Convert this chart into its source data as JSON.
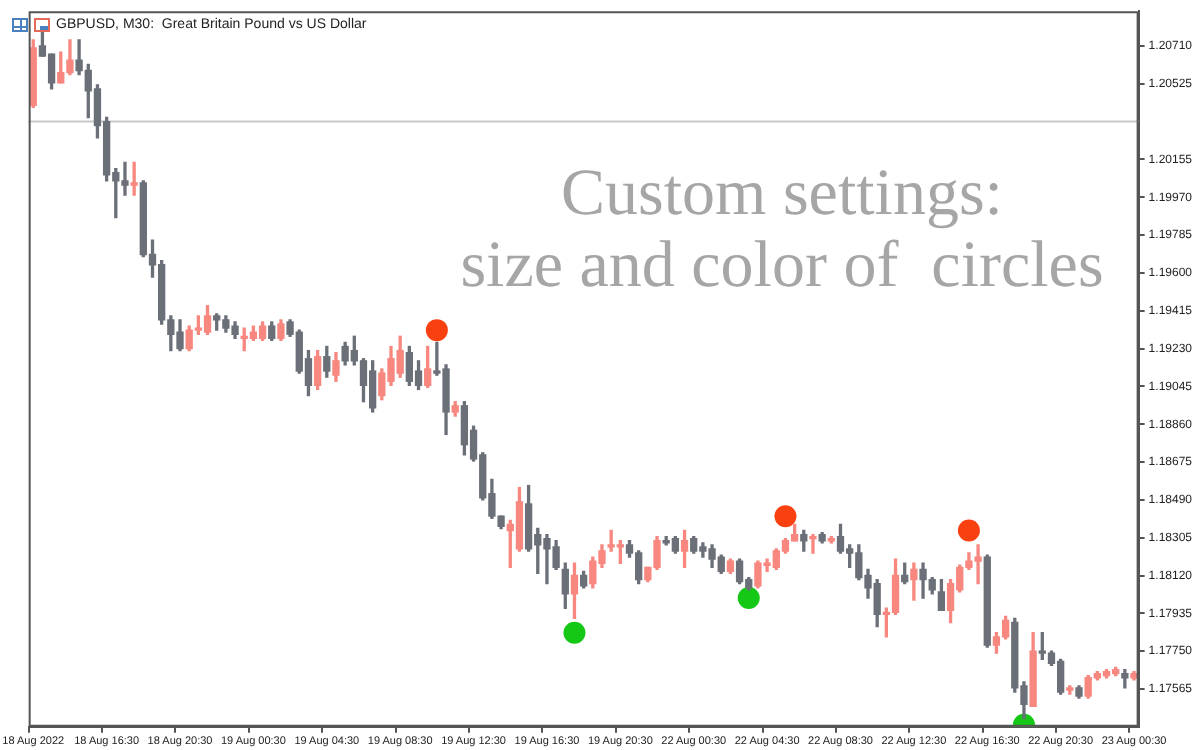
{
  "chart_data": {
    "type": "candlestick",
    "title": "GBPUSD, M30:  Great Britain Pound vs US Dollar",
    "annotations": [
      "Custom settings:",
      "size and color of  circles"
    ],
    "categories": [
      "18 Aug 2022",
      null,
      null,
      null,
      null,
      null,
      null,
      null,
      "18 Aug 16:30",
      null,
      null,
      null,
      null,
      null,
      null,
      null,
      "18 Aug 20:30",
      null,
      null,
      null,
      null,
      null,
      null,
      null,
      "19 Aug 00:30",
      null,
      null,
      null,
      null,
      null,
      null,
      null,
      "19 Aug 04:30",
      null,
      null,
      null,
      null,
      null,
      null,
      null,
      "19 Aug 08:30",
      null,
      null,
      null,
      null,
      null,
      null,
      null,
      "19 Aug 12:30",
      null,
      null,
      null,
      null,
      null,
      null,
      null,
      "19 Aug 16:30",
      null,
      null,
      null,
      null,
      null,
      null,
      null,
      "19 Aug 20:30",
      null,
      null,
      null,
      null,
      null,
      null,
      null,
      "22 Aug 00:30",
      null,
      null,
      null,
      null,
      null,
      null,
      null,
      "22 Aug 04:30",
      null,
      null,
      null,
      null,
      null,
      null,
      null,
      "22 Aug 08:30",
      null,
      null,
      null,
      null,
      null,
      null,
      null,
      "22 Aug 12:30",
      null,
      null,
      null,
      null,
      null,
      null,
      null,
      "22 Aug 16:30",
      null,
      null,
      null,
      null,
      null,
      null,
      null,
      "22 Aug 20:30",
      null,
      null,
      null,
      null,
      null,
      null,
      null,
      "23 Aug 00:30"
    ],
    "ohlc": [
      [
        1.2042,
        1.2074,
        1.2041,
        1.207
      ],
      [
        1.2071,
        1.2079,
        1.2066,
        1.2066
      ],
      [
        1.2067,
        1.2067,
        1.205,
        1.2053
      ],
      [
        1.2053,
        1.2068,
        1.2053,
        1.2058
      ],
      [
        1.2058,
        1.2074,
        1.2057,
        1.2064
      ],
      [
        1.2064,
        1.2074,
        1.2057,
        1.2059
      ],
      [
        1.2059,
        1.2062,
        1.2036,
        1.2049
      ],
      [
        1.205,
        1.2052,
        1.2026,
        1.2032
      ],
      [
        1.2034,
        1.2036,
        1.2005,
        1.2008
      ],
      [
        1.2009,
        1.2011,
        1.1987,
        1.2005
      ],
      [
        1.2005,
        1.2014,
        1.1998,
        1.2003
      ],
      [
        1.2003,
        1.2014,
        1.1998,
        1.2004
      ],
      [
        1.2004,
        1.2005,
        1.1968,
        1.1969
      ],
      [
        1.1969,
        1.1976,
        1.1958,
        1.1964
      ],
      [
        1.1964,
        1.1966,
        1.1935,
        1.1937
      ],
      [
        1.1937,
        1.1939,
        1.1922,
        1.193
      ],
      [
        1.1931,
        1.1937,
        1.1922,
        1.1923
      ],
      [
        1.1923,
        1.1934,
        1.1922,
        1.1932
      ],
      [
        1.1932,
        1.1939,
        1.193,
        1.1933
      ],
      [
        1.1931,
        1.1944,
        1.193,
        1.1939
      ],
      [
        1.1939,
        1.194,
        1.1932,
        1.1937
      ],
      [
        1.1937,
        1.1939,
        1.1931,
        1.1933
      ],
      [
        1.1934,
        1.1936,
        1.1928,
        1.193
      ],
      [
        1.1928,
        1.1933,
        1.1922,
        1.1929
      ],
      [
        1.1928,
        1.1934,
        1.1927,
        1.1931
      ],
      [
        1.1928,
        1.1936,
        1.1927,
        1.1934
      ],
      [
        1.1934,
        1.1936,
        1.1927,
        1.1928
      ],
      [
        1.1928,
        1.1937,
        1.1927,
        1.1935
      ],
      [
        1.1936,
        1.1937,
        1.1929,
        1.193
      ],
      [
        1.1931,
        1.1932,
        1.1911,
        1.1912
      ],
      [
        1.1918,
        1.1922,
        1.19,
        1.1905
      ],
      [
        1.1905,
        1.1922,
        1.1903,
        1.1919
      ],
      [
        1.1919,
        1.1924,
        1.1909,
        1.1912
      ],
      [
        1.191,
        1.1921,
        1.1907,
        1.1917
      ],
      [
        1.1924,
        1.1926,
        1.1915,
        1.1917
      ],
      [
        1.1922,
        1.1929,
        1.1915,
        1.1917
      ],
      [
        1.1917,
        1.1918,
        1.1897,
        1.1905
      ],
      [
        1.1912,
        1.1917,
        1.1892,
        1.1894
      ],
      [
        1.19,
        1.1913,
        1.1898,
        1.1911
      ],
      [
        1.1907,
        1.1924,
        1.1905,
        1.1918
      ],
      [
        1.1911,
        1.1929,
        1.1909,
        1.1922
      ],
      [
        1.1921,
        1.1924,
        1.1905,
        1.1907
      ],
      [
        1.1912,
        1.1917,
        1.1903,
        1.1905
      ],
      [
        1.1905,
        1.1924,
        1.1904,
        1.1913
      ],
      [
        1.1912,
        1.1926,
        1.191,
        1.1911
      ],
      [
        1.1913,
        1.1915,
        1.1881,
        1.1892
      ],
      [
        1.1892,
        1.1897,
        1.189,
        1.1895
      ],
      [
        1.1895,
        1.1897,
        1.1871,
        1.1876
      ],
      [
        1.1883,
        1.1885,
        1.1868,
        1.1869
      ],
      [
        1.1871,
        1.1872,
        1.1849,
        1.185
      ],
      [
        1.1852,
        1.1859,
        1.184,
        1.1841
      ],
      [
        1.1841,
        1.1841,
        1.1835,
        1.1836
      ],
      [
        1.1834,
        1.1839,
        1.1816,
        1.1837
      ],
      [
        1.1825,
        1.1855,
        1.1824,
        1.1848
      ],
      [
        1.1847,
        1.1856,
        1.1824,
        1.1825
      ],
      [
        1.1832,
        1.1835,
        1.1813,
        1.1827
      ],
      [
        1.183,
        1.1832,
        1.1808,
        1.1825
      ],
      [
        1.1826,
        1.1829,
        1.1815,
        1.1816
      ],
      [
        1.1815,
        1.1818,
        1.1796,
        1.1803
      ],
      [
        1.1803,
        1.1818,
        1.1791,
        1.1812
      ],
      [
        1.1812,
        1.1814,
        1.1806,
        1.1807
      ],
      [
        1.1808,
        1.1821,
        1.1806,
        1.1819
      ],
      [
        1.1818,
        1.1827,
        1.1816,
        1.1824
      ],
      [
        1.1826,
        1.1834,
        1.1824,
        1.1827
      ],
      [
        1.1826,
        1.1829,
        1.1818,
        1.1827
      ],
      [
        1.1827,
        1.1829,
        1.1821,
        1.1823
      ],
      [
        1.1823,
        1.1824,
        1.1808,
        1.181
      ],
      [
        1.181,
        1.1816,
        1.1809,
        1.1816
      ],
      [
        1.1816,
        1.1831,
        1.1815,
        1.1829
      ],
      [
        1.1829,
        1.1831,
        1.1827,
        1.1828
      ],
      [
        1.183,
        1.1831,
        1.1823,
        1.1824
      ],
      [
        1.1824,
        1.1834,
        1.1816,
        1.1829
      ],
      [
        1.183,
        1.1831,
        1.1823,
        1.1824
      ],
      [
        1.1826,
        1.1828,
        1.1821,
        1.1824
      ],
      [
        1.1825,
        1.1827,
        1.1816,
        1.182
      ],
      [
        1.1821,
        1.1822,
        1.1813,
        1.1814
      ],
      [
        1.1814,
        1.182,
        1.1813,
        1.1819
      ],
      [
        1.1819,
        1.182,
        1.1808,
        1.1809
      ],
      [
        1.181,
        1.1811,
        1.1805,
        1.1806
      ],
      [
        1.1807,
        1.1819,
        1.1806,
        1.1818
      ],
      [
        1.1817,
        1.182,
        1.1814,
        1.1818
      ],
      [
        1.1816,
        1.1825,
        1.1815,
        1.1824
      ],
      [
        1.1824,
        1.183,
        1.1823,
        1.1829
      ],
      [
        1.1829,
        1.1837,
        1.1829,
        1.1832
      ],
      [
        1.1832,
        1.1834,
        1.1824,
        1.1829
      ],
      [
        1.183,
        1.1832,
        1.1823,
        1.1831
      ],
      [
        1.1832,
        1.1833,
        1.1828,
        1.1829
      ],
      [
        1.1829,
        1.1831,
        1.1828,
        1.183
      ],
      [
        1.1831,
        1.1837,
        1.1823,
        1.1824
      ],
      [
        1.1825,
        1.1827,
        1.1816,
        1.1823
      ],
      [
        1.1823,
        1.1827,
        1.181,
        1.1811
      ],
      [
        1.1812,
        1.1815,
        1.1801,
        1.1806
      ],
      [
        1.1808,
        1.181,
        1.1787,
        1.1793
      ],
      [
        1.1793,
        1.1796,
        1.1782,
        1.1794
      ],
      [
        1.1794,
        1.182,
        1.1793,
        1.1812
      ],
      [
        1.1812,
        1.1818,
        1.1808,
        1.1809
      ],
      [
        1.181,
        1.1818,
        1.18,
        1.1815
      ],
      [
        1.1815,
        1.1818,
        1.1801,
        1.181
      ],
      [
        1.181,
        1.1811,
        1.1803,
        1.1805
      ],
      [
        1.1804,
        1.181,
        1.1795,
        1.1795
      ],
      [
        1.1795,
        1.181,
        1.1789,
        1.1808
      ],
      [
        1.1805,
        1.1817,
        1.1804,
        1.1816
      ],
      [
        1.1816,
        1.1823,
        1.1815,
        1.1819
      ],
      [
        1.1819,
        1.1827,
        1.1808,
        1.1821
      ],
      [
        1.1821,
        1.1822,
        1.1777,
        1.1778
      ],
      [
        1.1778,
        1.1784,
        1.1774,
        1.1782
      ],
      [
        1.1782,
        1.1792,
        1.1781,
        1.179
      ],
      [
        1.1789,
        1.1791,
        1.1755,
        1.1757
      ],
      [
        1.1758,
        1.176,
        1.1742,
        1.1749
      ],
      [
        1.1748,
        1.1784,
        1.1748,
        1.1775
      ],
      [
        1.1775,
        1.1784,
        1.1771,
        1.1774
      ],
      [
        1.1774,
        1.1775,
        1.1768,
        1.1769
      ],
      [
        1.177,
        1.1771,
        1.1754,
        1.1755
      ],
      [
        1.1756,
        1.1758,
        1.1754,
        1.1757
      ],
      [
        1.1757,
        1.1758,
        1.1752,
        1.1753
      ],
      [
        1.1753,
        1.1763,
        1.1752,
        1.1762
      ],
      [
        1.1762,
        1.1765,
        1.1761,
        1.1764
      ],
      [
        1.1763,
        1.1766,
        1.1762,
        1.1765
      ],
      [
        1.1764,
        1.1767,
        1.1763,
        1.1766
      ],
      [
        1.1764,
        1.1766,
        1.1757,
        1.1762
      ],
      [
        1.1762,
        1.1765,
        1.1761,
        1.1764
      ]
    ],
    "colors": [
      "#f7877f",
      "#6b7078",
      "#6b7078",
      "#f7877f",
      "#f7877f",
      "#6b7078",
      "#6b7078",
      "#6b7078",
      "#6b7078",
      "#6b7078",
      "#6b7078",
      "#f7877f",
      "#6b7078",
      "#6b7078",
      "#6b7078",
      "#6b7078",
      "#6b7078",
      "#f7877f",
      "#f7877f",
      "#f7877f",
      "#6b7078",
      "#6b7078",
      "#6b7078",
      "#f7877f",
      "#f7877f",
      "#f7877f",
      "#6b7078",
      "#f7877f",
      "#6b7078",
      "#6b7078",
      "#6b7078",
      "#f7877f",
      "#6b7078",
      "#f7877f",
      "#6b7078",
      "#6b7078",
      "#6b7078",
      "#6b7078",
      "#f7877f",
      "#f7877f",
      "#f7877f",
      "#6b7078",
      "#6b7078",
      "#f7877f",
      "#6b7078",
      "#6b7078",
      "#f7877f",
      "#6b7078",
      "#6b7078",
      "#6b7078",
      "#6b7078",
      "#6b7078",
      "#f7877f",
      "#f7877f",
      "#6b7078",
      "#6b7078",
      "#6b7078",
      "#6b7078",
      "#6b7078",
      "#f7877f",
      "#6b7078",
      "#f7877f",
      "#f7877f",
      "#f7877f",
      "#f7877f",
      "#6b7078",
      "#6b7078",
      "#f7877f",
      "#f7877f",
      "#6b7078",
      "#6b7078",
      "#f7877f",
      "#6b7078",
      "#6b7078",
      "#6b7078",
      "#6b7078",
      "#f7877f",
      "#6b7078",
      "#6b7078",
      "#f7877f",
      "#f7877f",
      "#f7877f",
      "#f7877f",
      "#f7877f",
      "#6b7078",
      "#f7877f",
      "#6b7078",
      "#f7877f",
      "#6b7078",
      "#6b7078",
      "#6b7078",
      "#6b7078",
      "#6b7078",
      "#f7877f",
      "#f7877f",
      "#6b7078",
      "#f7877f",
      "#6b7078",
      "#6b7078",
      "#6b7078",
      "#f7877f",
      "#f7877f",
      "#f7877f",
      "#f7877f",
      "#6b7078",
      "#f7877f",
      "#f7877f",
      "#6b7078",
      "#6b7078",
      "#f7877f",
      "#6b7078",
      "#6b7078",
      "#6b7078",
      "#f7877f",
      "#6b7078",
      "#f7877f",
      "#f7877f",
      "#f7877f",
      "#f7877f",
      "#6b7078",
      "#f7877f"
    ],
    "series": [
      {
        "type": "scatter",
        "color": "#f94010",
        "marker": "circle",
        "values": [
          null,
          null,
          null,
          null,
          null,
          null,
          null,
          null,
          null,
          null,
          null,
          null,
          null,
          null,
          null,
          null,
          null,
          null,
          null,
          null,
          null,
          null,
          null,
          null,
          null,
          null,
          null,
          null,
          null,
          null,
          null,
          null,
          null,
          null,
          null,
          null,
          null,
          null,
          null,
          null,
          null,
          null,
          null,
          null,
          1.1932,
          null,
          null,
          null,
          null,
          null,
          null,
          null,
          null,
          null,
          null,
          null,
          null,
          null,
          null,
          null,
          null,
          null,
          null,
          null,
          null,
          null,
          null,
          null,
          null,
          null,
          null,
          null,
          null,
          null,
          null,
          null,
          null,
          null,
          null,
          null,
          null,
          null,
          1.1841,
          null,
          null,
          null,
          null,
          null,
          null,
          null,
          null,
          null,
          null,
          null,
          null,
          null,
          null,
          null,
          null,
          null,
          null,
          null,
          1.1834,
          null,
          null,
          null,
          null,
          null,
          null,
          null,
          null,
          null,
          null,
          null,
          null,
          null,
          null,
          null,
          null,
          null,
          null
        ]
      },
      {
        "type": "scatter",
        "color": "#16c816",
        "marker": "circle",
        "values": [
          null,
          null,
          null,
          null,
          null,
          null,
          null,
          null,
          null,
          null,
          null,
          null,
          null,
          null,
          null,
          null,
          null,
          null,
          null,
          null,
          null,
          null,
          null,
          null,
          null,
          null,
          null,
          null,
          null,
          null,
          null,
          null,
          null,
          null,
          null,
          null,
          null,
          null,
          null,
          null,
          null,
          null,
          null,
          null,
          null,
          null,
          null,
          null,
          null,
          null,
          null,
          null,
          null,
          null,
          null,
          null,
          null,
          null,
          null,
          1.1784,
          null,
          null,
          null,
          null,
          null,
          null,
          null,
          null,
          null,
          null,
          null,
          null,
          null,
          null,
          null,
          null,
          null,
          null,
          1.1801,
          null,
          null,
          null,
          null,
          null,
          null,
          null,
          null,
          null,
          null,
          null,
          null,
          null,
          null,
          null,
          null,
          null,
          null,
          null,
          null,
          null,
          null,
          null,
          null,
          null,
          null,
          null,
          null,
          null,
          1.1739,
          null,
          null,
          null,
          null,
          null,
          null,
          null,
          null,
          null,
          null,
          null,
          null
        ]
      }
    ],
    "ylim": [
      1.1738,
      1.2088
    ],
    "yticks": [
      {
        "value": 1.2071,
        "label": "1.20710"
      },
      {
        "value": 1.20525,
        "label": "1.20525"
      },
      {
        "value": 1.20155,
        "label": "1.20155"
      },
      {
        "value": 1.1997,
        "label": "1.19970"
      },
      {
        "value": 1.19785,
        "label": "1.19785"
      },
      {
        "value": 1.196,
        "label": "1.19600"
      },
      {
        "value": 1.19415,
        "label": "1.19415"
      },
      {
        "value": 1.1923,
        "label": "1.19230"
      },
      {
        "value": 1.19045,
        "label": "1.19045"
      },
      {
        "value": 1.1886,
        "label": "1.18860"
      },
      {
        "value": 1.18675,
        "label": "1.18675"
      },
      {
        "value": 1.1849,
        "label": "1.18490"
      },
      {
        "value": 1.18305,
        "label": "1.18305"
      },
      {
        "value": 1.1812,
        "label": "1.18120"
      },
      {
        "value": 1.17935,
        "label": "1.17935"
      },
      {
        "value": 1.1775,
        "label": "1.17750"
      },
      {
        "value": 1.17565,
        "label": "1.17565"
      }
    ],
    "ref_lines": [
      {
        "axis": "y",
        "value": 1.2034,
        "color": "#c8c8c8"
      }
    ]
  }
}
